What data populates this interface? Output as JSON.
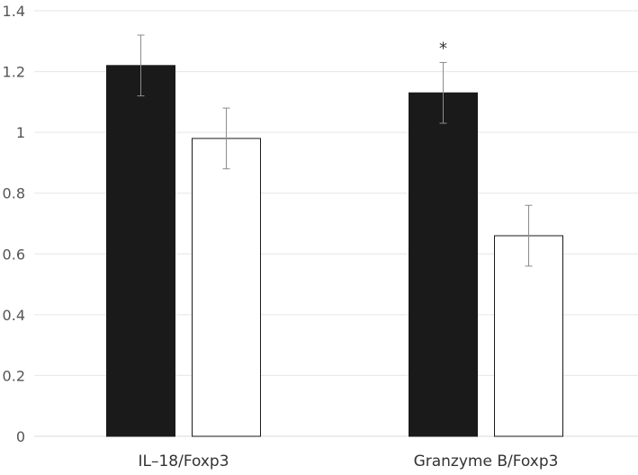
{
  "chart_data": {
    "type": "bar",
    "categories": [
      "IL–18/Foxp3",
      "Granzyme B/Foxp3"
    ],
    "series": [
      {
        "values": [
          1.22,
          1.13
        ],
        "errors": [
          0.1,
          0.1
        ],
        "color": "#1a1a1a"
      },
      {
        "values": [
          0.98,
          0.66
        ],
        "errors": [
          0.1,
          0.1
        ],
        "color": "#ffffff"
      }
    ],
    "yticks": [
      "0",
      "0.2",
      "0.4",
      "0.6",
      "0.8",
      "1",
      "1.2",
      "1.4"
    ],
    "ylim": [
      0,
      1.4
    ],
    "grid": true,
    "annotations": [
      {
        "text": "*",
        "category_index": 1,
        "series_index": 0
      }
    ],
    "title": "",
    "xlabel": "",
    "ylabel": ""
  }
}
